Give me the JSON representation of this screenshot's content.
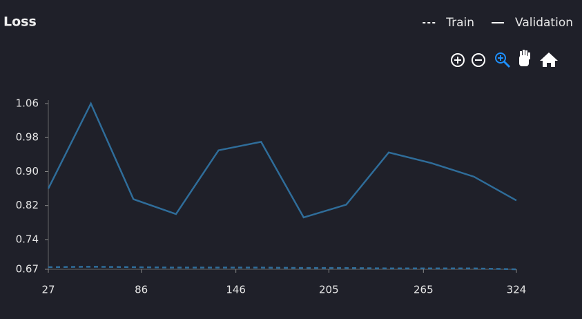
{
  "chart_data": {
    "type": "line",
    "title": "Loss",
    "x": [
      27,
      54,
      81,
      108,
      135,
      162,
      189,
      216,
      243,
      270,
      297,
      324
    ],
    "series": [
      {
        "name": "Train",
        "color": "#2f6d9a",
        "dash": true,
        "values": [
          0.675,
          0.676,
          0.675,
          0.674,
          0.674,
          0.674,
          0.673,
          0.673,
          0.672,
          0.672,
          0.672,
          0.67
        ]
      },
      {
        "name": "Validation",
        "color": "#2f6d9a",
        "dash": false,
        "values": [
          0.86,
          1.06,
          0.835,
          0.8,
          0.95,
          0.97,
          0.792,
          0.822,
          0.945,
          0.92,
          0.888,
          0.832
        ]
      }
    ],
    "xlim": [
      27,
      324
    ],
    "xticks": [
      27,
      86,
      146,
      205,
      265,
      324
    ],
    "ylim": [
      0.67,
      1.06
    ],
    "yticks": [
      0.67,
      0.74,
      0.82,
      {
        "value": 0.9,
        "label": "0.90"
      },
      0.98,
      1.06
    ],
    "legend": "top-right"
  }
}
